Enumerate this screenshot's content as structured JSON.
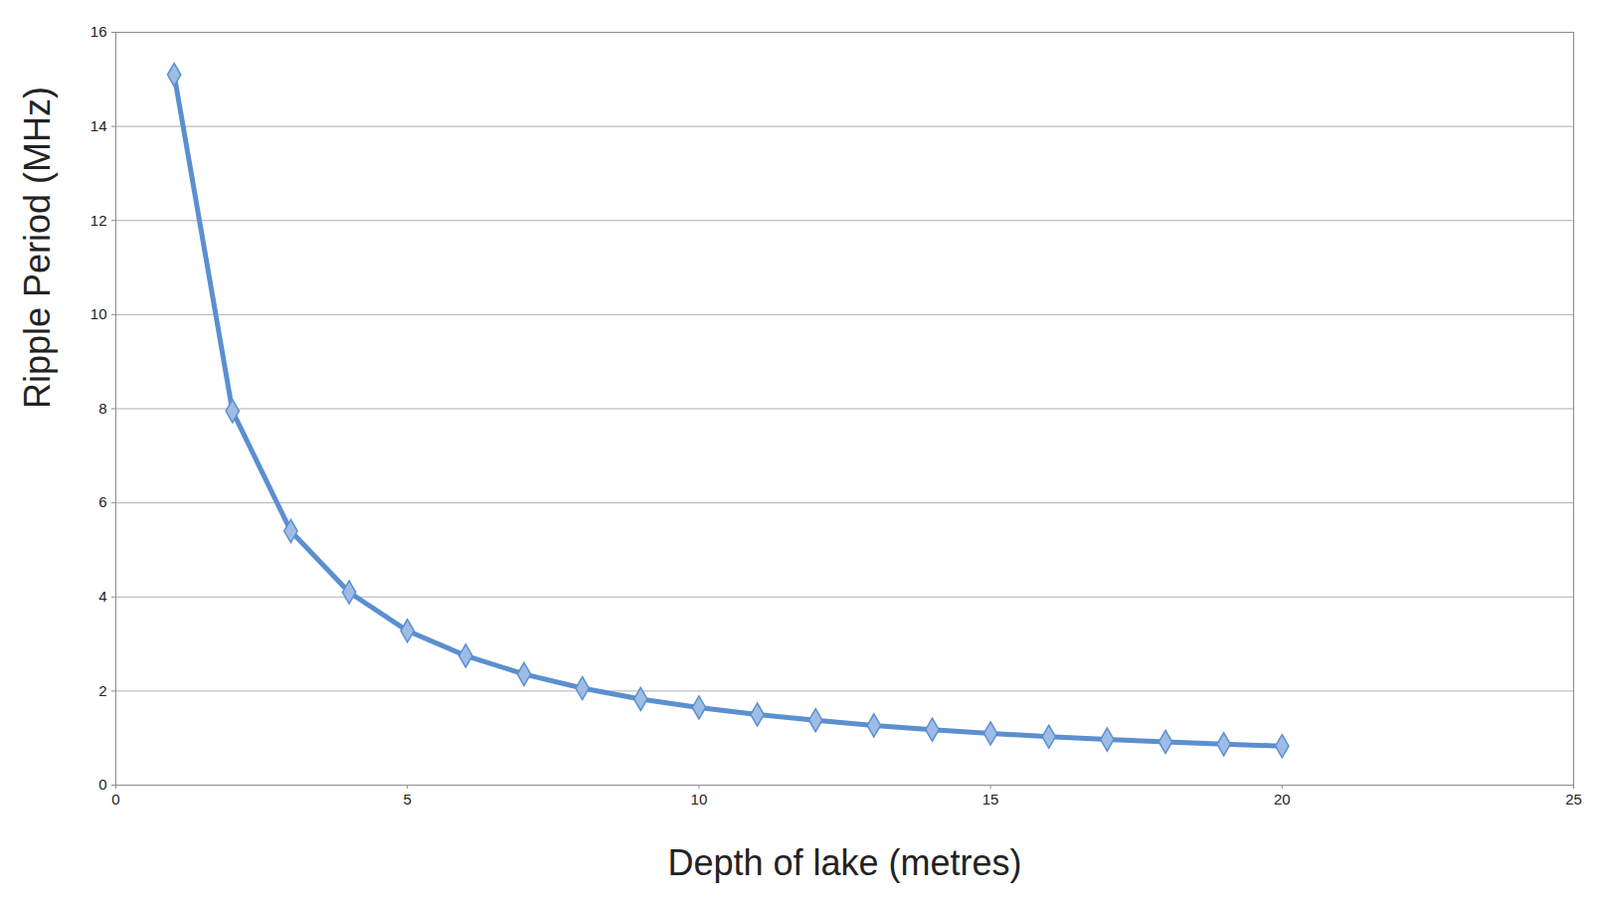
{
  "chart_data": {
    "type": "line",
    "x_label": "Depth of lake (metres)",
    "y_label": "Ripple Period (MHz)",
    "x": [
      1,
      2,
      3,
      4,
      5,
      6,
      7,
      8,
      9,
      10,
      11,
      12,
      13,
      14,
      15,
      16,
      17,
      18,
      19,
      20
    ],
    "values": [
      15.1,
      7.95,
      5.4,
      4.1,
      3.28,
      2.75,
      2.36,
      2.06,
      1.83,
      1.65,
      1.5,
      1.38,
      1.27,
      1.18,
      1.1,
      1.03,
      0.97,
      0.92,
      0.87,
      0.83
    ],
    "color": "#5b8fd0",
    "marker": "diamond",
    "xlim": [
      0,
      25
    ],
    "xticks": [
      0,
      5,
      10,
      15,
      20,
      25
    ],
    "ylim": [
      0,
      16
    ],
    "yticks": [
      0,
      2,
      4,
      6,
      8,
      10,
      12,
      14,
      16
    ],
    "grid": true
  }
}
